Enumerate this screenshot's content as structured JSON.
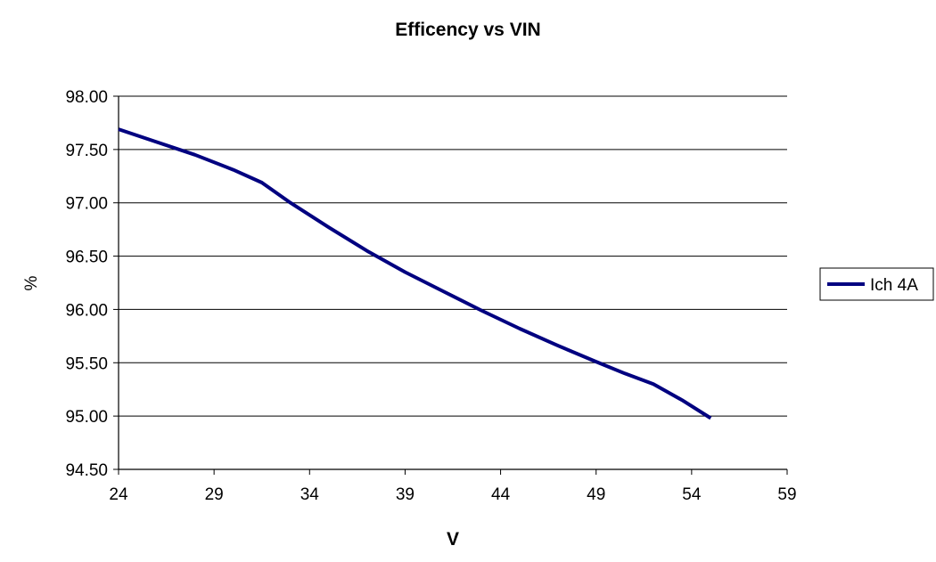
{
  "chart_data": {
    "type": "line",
    "title": "Efficency vs VIN",
    "xlabel": "V",
    "ylabel": "%",
    "xlim": [
      24,
      59
    ],
    "ylim": [
      94.5,
      98.0
    ],
    "x_ticks": [
      24,
      29,
      34,
      39,
      44,
      49,
      54,
      59
    ],
    "x_tick_labels": [
      "24",
      "29",
      "34",
      "39",
      "44",
      "49",
      "54",
      "59"
    ],
    "y_ticks": [
      94.5,
      95.0,
      95.5,
      96.0,
      96.5,
      97.0,
      97.5,
      98.0
    ],
    "y_tick_labels": [
      "94.50",
      "95.00",
      "95.50",
      "96.00",
      "96.50",
      "97.00",
      "97.50",
      "98.00"
    ],
    "grid": "horizontal",
    "legend_position": "right",
    "series": [
      {
        "name": "Ich 4A",
        "color": "#000080",
        "x": [
          24,
          26,
          28,
          30,
          31.5,
          33,
          35,
          37,
          39,
          41,
          43,
          45,
          47,
          49,
          50.5,
          52,
          53.5,
          55
        ],
        "y": [
          97.69,
          97.57,
          97.45,
          97.31,
          97.19,
          97.0,
          96.77,
          96.55,
          96.35,
          96.17,
          95.99,
          95.82,
          95.66,
          95.51,
          95.4,
          95.3,
          95.15,
          94.98
        ]
      }
    ]
  }
}
